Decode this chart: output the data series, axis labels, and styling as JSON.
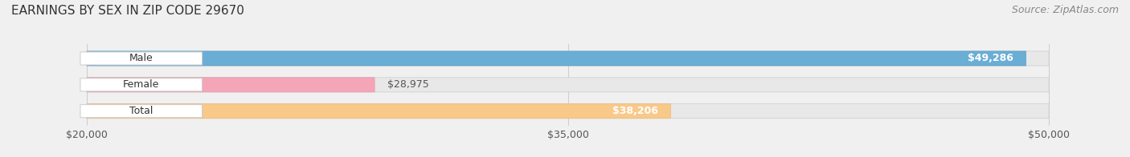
{
  "title": "EARNINGS BY SEX IN ZIP CODE 29670",
  "source": "Source: ZipAtlas.com",
  "categories": [
    "Male",
    "Female",
    "Total"
  ],
  "values": [
    49286,
    28975,
    38206
  ],
  "labels": [
    "$49,286",
    "$28,975",
    "$38,206"
  ],
  "bar_colors": [
    "#6aaed6",
    "#f4a6b8",
    "#f9c98a"
  ],
  "bar_edge_colors": [
    "#5a9ec6",
    "#e496a8",
    "#e9b97a"
  ],
  "label_colors": [
    "#ffffff",
    "#888888",
    "#ffffff"
  ],
  "xmin": 20000,
  "xmax": 50000,
  "xticks": [
    20000,
    35000,
    50000
  ],
  "xtick_labels": [
    "$20,000",
    "$35,000",
    "$50,000"
  ],
  "background_color": "#f0f0f0",
  "bar_bg_color": "#e8e8e8",
  "title_fontsize": 11,
  "source_fontsize": 9,
  "label_fontsize": 9,
  "category_fontsize": 9,
  "tick_fontsize": 9
}
